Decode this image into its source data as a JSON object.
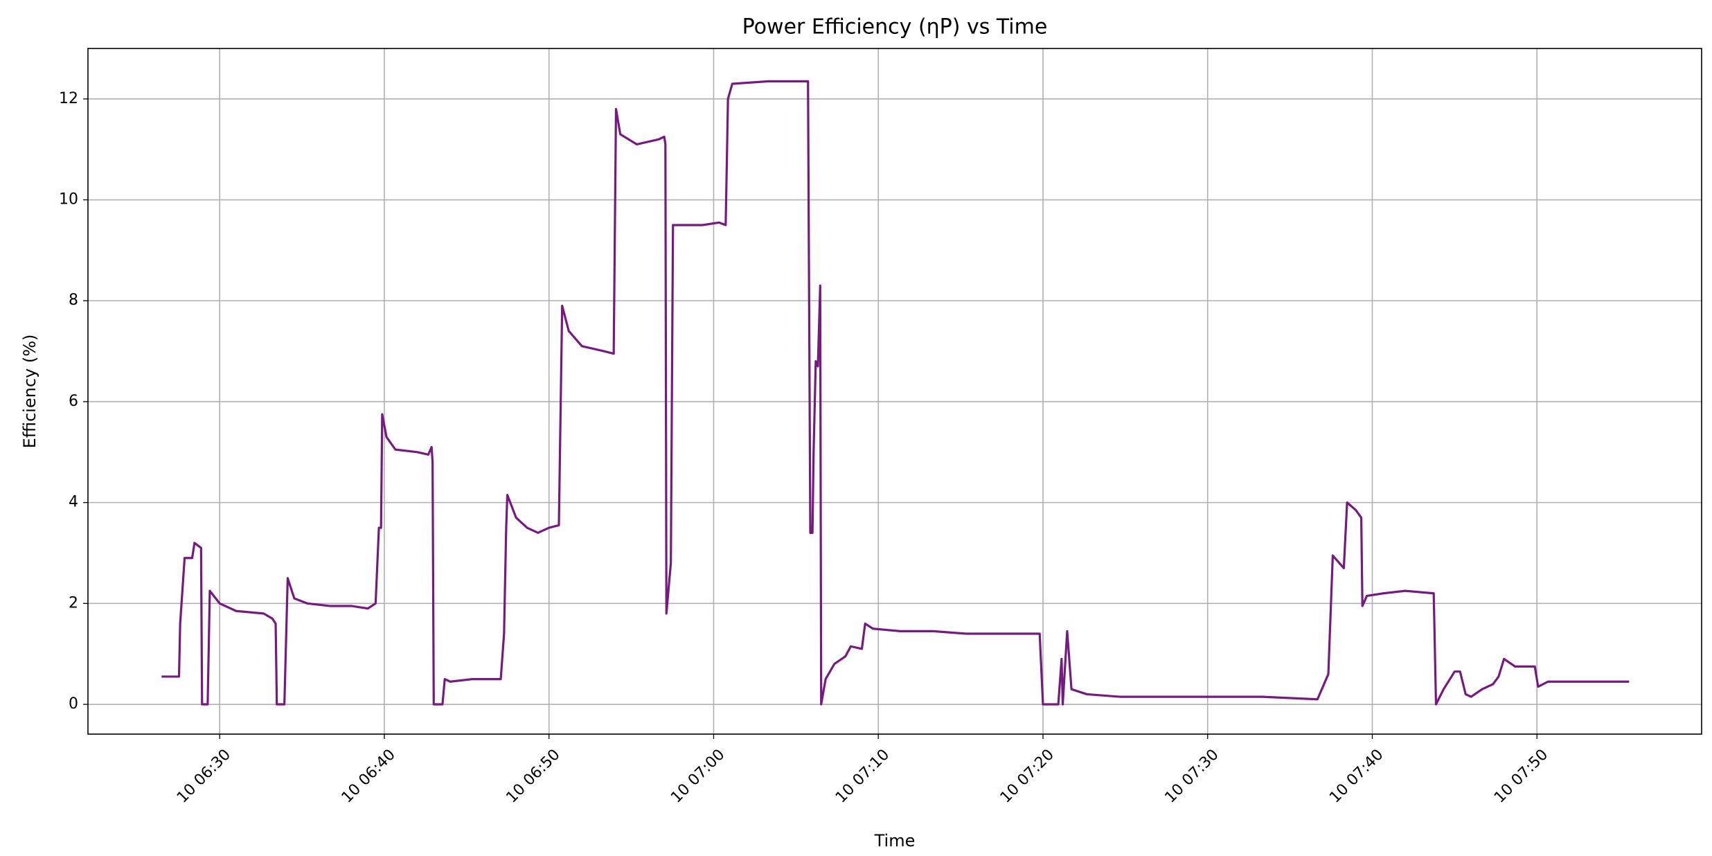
{
  "chart_data": {
    "type": "line",
    "title": "Power Efficiency (ηP) vs Time",
    "x_label": "Time",
    "y_label": "Efficiency (%)",
    "grid": true,
    "xlim": [
      382,
      480
    ],
    "ylim": [
      -0.59,
      13.0
    ],
    "xticks": [
      {
        "value": 390,
        "label": "10 06:30"
      },
      {
        "value": 400,
        "label": "10 06:40"
      },
      {
        "value": 410,
        "label": "10 06:50"
      },
      {
        "value": 420,
        "label": "10 07:00"
      },
      {
        "value": 430,
        "label": "10 07:10"
      },
      {
        "value": 440,
        "label": "10 07:20"
      },
      {
        "value": 450,
        "label": "10 07:30"
      },
      {
        "value": 460,
        "label": "10 07:40"
      },
      {
        "value": 470,
        "label": "10 07:50"
      }
    ],
    "yticks": [
      0,
      2,
      4,
      6,
      8,
      10,
      12
    ],
    "x": [
      386.47,
      387.53,
      387.6,
      387.87,
      388.33,
      388.47,
      388.87,
      388.93,
      389.27,
      389.4,
      390,
      391,
      392.67,
      393.2,
      393.4,
      393.47,
      393.93,
      394.13,
      394.53,
      395.33,
      396.67,
      398,
      399,
      399.47,
      399.67,
      399.8,
      399.87,
      400.13,
      400.67,
      402,
      402.67,
      402.87,
      402.93,
      403,
      403.53,
      403.67,
      404,
      405.33,
      407.07,
      407.27,
      407.4,
      407.47,
      408,
      408.67,
      409.33,
      410,
      410.6,
      410.8,
      411.2,
      412,
      413.33,
      413.93,
      414.07,
      414.33,
      415.33,
      416.67,
      417,
      417.07,
      417.13,
      417.4,
      417.53,
      419.33,
      420.33,
      420.73,
      420.87,
      421.13,
      423.33,
      425.73,
      425.87,
      426,
      426.07,
      426.2,
      426.33,
      426.47,
      426.53,
      426.8,
      427.33,
      428,
      428.33,
      429,
      429.2,
      429.67,
      431.33,
      433.33,
      435.33,
      439.8,
      440,
      440.93,
      441.13,
      441.2,
      441.47,
      441.73,
      442.67,
      444.67,
      450,
      453.33,
      456.67,
      457.33,
      457.6,
      458,
      458.27,
      458.47,
      459,
      459.33,
      459.4,
      459.67,
      460.67,
      462,
      463.73,
      463.87,
      464.33,
      465,
      465.33,
      465.67,
      466,
      466.67,
      467.33,
      467.67,
      468,
      468.67,
      469.87,
      470.07,
      470.67,
      475.6
    ],
    "series": [
      {
        "color": "#751a7e",
        "values": [
          0.55,
          0.55,
          1.6,
          2.9,
          2.9,
          3.2,
          3.1,
          0,
          0,
          2.25,
          2.0,
          1.85,
          1.8,
          1.7,
          1.6,
          0,
          0,
          2.5,
          2.1,
          2.0,
          1.95,
          1.95,
          1.9,
          2.0,
          3.5,
          3.5,
          5.75,
          5.3,
          5.05,
          5.0,
          4.95,
          5.1,
          4.8,
          0,
          0,
          0.5,
          0.45,
          0.5,
          0.5,
          1.4,
          3.5,
          4.15,
          3.7,
          3.5,
          3.4,
          3.5,
          3.55,
          7.9,
          7.4,
          7.1,
          7.0,
          6.95,
          11.8,
          11.3,
          11.1,
          11.2,
          11.25,
          11.1,
          1.8,
          2.8,
          9.5,
          9.5,
          9.55,
          9.5,
          12.0,
          12.3,
          12.35,
          12.35,
          3.4,
          3.4,
          5.0,
          6.8,
          6.7,
          8.3,
          0,
          0.5,
          0.8,
          0.95,
          1.15,
          1.1,
          1.6,
          1.5,
          1.45,
          1.45,
          1.4,
          1.4,
          0,
          0,
          0.9,
          0,
          1.45,
          0.3,
          0.2,
          0.15,
          0.15,
          0.15,
          0.1,
          0.6,
          2.95,
          2.8,
          2.7,
          4.0,
          3.85,
          3.7,
          1.95,
          2.15,
          2.2,
          2.25,
          2.2,
          0,
          0.3,
          0.65,
          0.65,
          0.2,
          0.15,
          0.3,
          0.4,
          0.55,
          0.9,
          0.75,
          0.75,
          0.35,
          0.45,
          0.45
        ]
      }
    ]
  }
}
